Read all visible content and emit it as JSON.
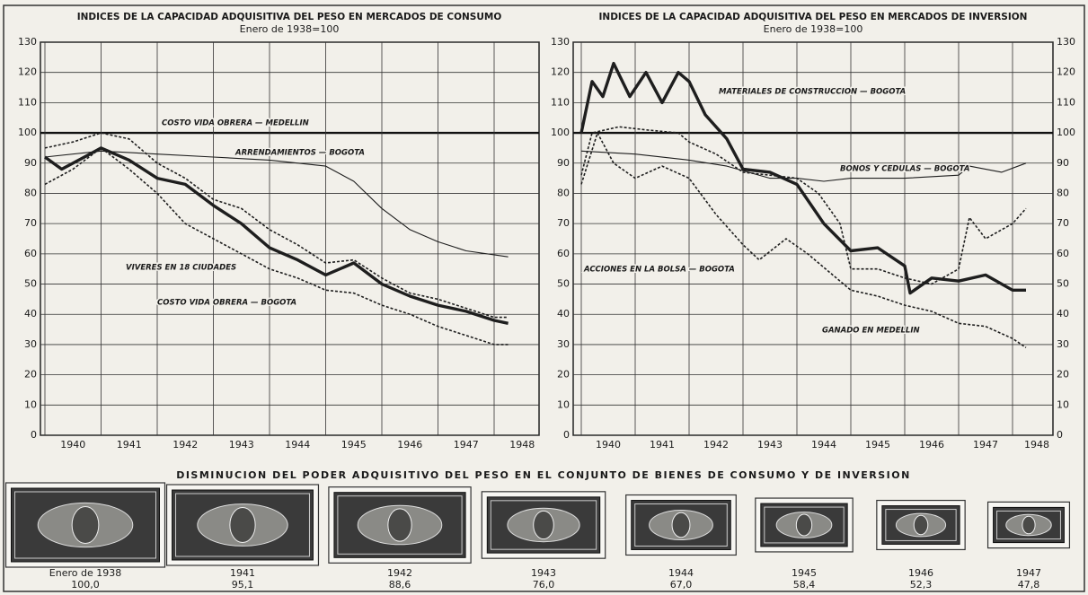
{
  "chart_data": [
    {
      "type": "line",
      "title": "INDICES DE LA CAPACIDAD ADQUISITIVA DEL PESO EN MERCADOS DE CONSUMO",
      "subtitle": "Enero de 1938=100",
      "xlim": [
        1939.92,
        1948.8
      ],
      "xticks": [
        1940,
        1941,
        1942,
        1943,
        1944,
        1945,
        1946,
        1947,
        1948
      ],
      "ylim": [
        0,
        130
      ],
      "yticks": [
        0,
        10,
        20,
        30,
        40,
        50,
        60,
        70,
        80,
        90,
        100,
        110,
        120,
        130
      ],
      "grid": true,
      "reference_line": 100,
      "series": [
        {
          "name": "COSTO VIDA OBRERA — MEDELLIN",
          "color": "#1e1e1e",
          "line_style": "dashed",
          "x": [
            1940,
            1940.5,
            1941,
            1941.5,
            1942,
            1942.5,
            1943,
            1943.5,
            1944,
            1944.5,
            1945,
            1945.5,
            1946,
            1946.5,
            1947,
            1947.5,
            1948,
            1948.25
          ],
          "values": [
            95,
            97,
            100,
            98,
            90,
            85,
            78,
            75,
            68,
            63,
            57,
            58,
            52,
            47,
            45,
            42,
            39,
            39
          ]
        },
        {
          "name": "ARRENDAMIENTOS — BOGOTA",
          "color": "#1e1e1e",
          "line_style": "thin",
          "x": [
            1940,
            1941,
            1942,
            1943,
            1944,
            1945,
            1945.5,
            1946,
            1946.5,
            1947,
            1947.5,
            1948.25
          ],
          "values": [
            92,
            94,
            93,
            92,
            91,
            89,
            84,
            75,
            68,
            64,
            61,
            59
          ]
        },
        {
          "name": "VIVERES EN 18 CIUDADES",
          "color": "#1e1e1e",
          "line_style": "dashed",
          "x": [
            1940,
            1940.5,
            1941,
            1941.5,
            1942,
            1942.5,
            1943,
            1943.5,
            1944,
            1944.5,
            1945,
            1945.5,
            1946,
            1946.5,
            1947,
            1947.5,
            1948,
            1948.25
          ],
          "values": [
            83,
            88,
            95,
            88,
            80,
            70,
            65,
            60,
            55,
            52,
            48,
            47,
            43,
            40,
            36,
            33,
            30,
            30
          ]
        },
        {
          "name": "COSTO VIDA OBRERA — BOGOTA",
          "color": "#1e1e1e",
          "line_style": "thick",
          "x": [
            1940,
            1940.3,
            1940.8,
            1941,
            1941.5,
            1942,
            1942.5,
            1943,
            1943.5,
            1944,
            1944.5,
            1945,
            1945.5,
            1946,
            1946.5,
            1947,
            1947.5,
            1948,
            1948.25
          ],
          "values": [
            92,
            88,
            93,
            95,
            91,
            85,
            83,
            76,
            70,
            62,
            58,
            53,
            57,
            50,
            46,
            43,
            41,
            38,
            37
          ]
        }
      ]
    },
    {
      "type": "line",
      "title": "INDICES DE LA CAPACIDAD ADQUISITIVA DEL PESO EN MERCADOS DE INVERSION",
      "subtitle": "Enero de 1938=100",
      "xlim": [
        1939.85,
        1948.75
      ],
      "xticks": [
        1940,
        1941,
        1942,
        1943,
        1944,
        1945,
        1946,
        1947,
        1948
      ],
      "ylim": [
        0,
        130
      ],
      "yticks": [
        0,
        10,
        20,
        30,
        40,
        50,
        60,
        70,
        80,
        90,
        100,
        110,
        120,
        130
      ],
      "grid": true,
      "reference_line": 100,
      "series": [
        {
          "name": "MATERIALES DE CONSTRUCCION — BOGOTA",
          "color": "#1e1e1e",
          "line_style": "thick",
          "x": [
            1940,
            1940.2,
            1940.4,
            1940.6,
            1940.9,
            1941.2,
            1941.5,
            1941.8,
            1942,
            1942.3,
            1942.7,
            1943,
            1943.5,
            1944,
            1944.5,
            1945,
            1945.5,
            1946,
            1946.1,
            1946.5,
            1947,
            1947.5,
            1948,
            1948.25
          ],
          "values": [
            100,
            117,
            112,
            123,
            112,
            120,
            110,
            120,
            117,
            106,
            98,
            88,
            87,
            83,
            70,
            61,
            62,
            56,
            47,
            52,
            51,
            53,
            48,
            48
          ]
        },
        {
          "name": "BONOS Y CEDULAS — BOGOTA",
          "color": "#1e1e1e",
          "line_style": "thin",
          "x": [
            1940,
            1941,
            1942,
            1942.7,
            1943.5,
            1944,
            1944.5,
            1945,
            1946,
            1947,
            1947.2,
            1947.8,
            1948.25
          ],
          "values": [
            94,
            93,
            91,
            89,
            85,
            85,
            84,
            85,
            85,
            86,
            89,
            87,
            90
          ]
        },
        {
          "name": "ACCIONES EN LA BOLSA — BOGOTA",
          "color": "#1e1e1e",
          "line_style": "dashed",
          "x": [
            1940,
            1940.3,
            1940.6,
            1941,
            1941.5,
            1942,
            1942.5,
            1943,
            1943.3,
            1943.8,
            1944.2,
            1944.6,
            1945,
            1945.5,
            1946,
            1946.5,
            1947,
            1947.5,
            1948,
            1948.25
          ],
          "values": [
            83,
            100,
            90,
            85,
            89,
            85,
            73,
            63,
            58,
            65,
            60,
            54,
            48,
            46,
            43,
            41,
            37,
            36,
            32,
            29
          ]
        },
        {
          "name": "GANADO EN MEDELLIN",
          "color": "#1e1e1e",
          "line_style": "dashed",
          "x": [
            1940,
            1940.2,
            1940.7,
            1941.2,
            1941.8,
            1942,
            1942.5,
            1943,
            1943.5,
            1944,
            1944.4,
            1944.8,
            1945,
            1945.5,
            1946,
            1946.5,
            1947,
            1947.2,
            1947.5,
            1948,
            1948.25
          ],
          "values": [
            86,
            100,
            102,
            101,
            100,
            97,
            93,
            87,
            86,
            85,
            80,
            70,
            55,
            55,
            52,
            50,
            55,
            72,
            65,
            70,
            75
          ]
        }
      ]
    },
    {
      "type": "pictograph",
      "title": "DISMINUCION DEL PODER ADQUISITIVO DEL PESO EN EL CONJUNTO DE BIENES DE CONSUMO Y DE INVERSION",
      "categories": [
        "Enero de 1938",
        "1941",
        "1942",
        "1943",
        "1944",
        "1945",
        "1946",
        "1947"
      ],
      "values": [
        100,
        95.1,
        88.6,
        76,
        67,
        58.4,
        52.3,
        47.8
      ],
      "value_labels": [
        "100,0",
        "95,1",
        "88,6",
        "76,0",
        "67,0",
        "58,4",
        "52,3",
        "47,8"
      ],
      "color": "#3a3a3a"
    }
  ]
}
